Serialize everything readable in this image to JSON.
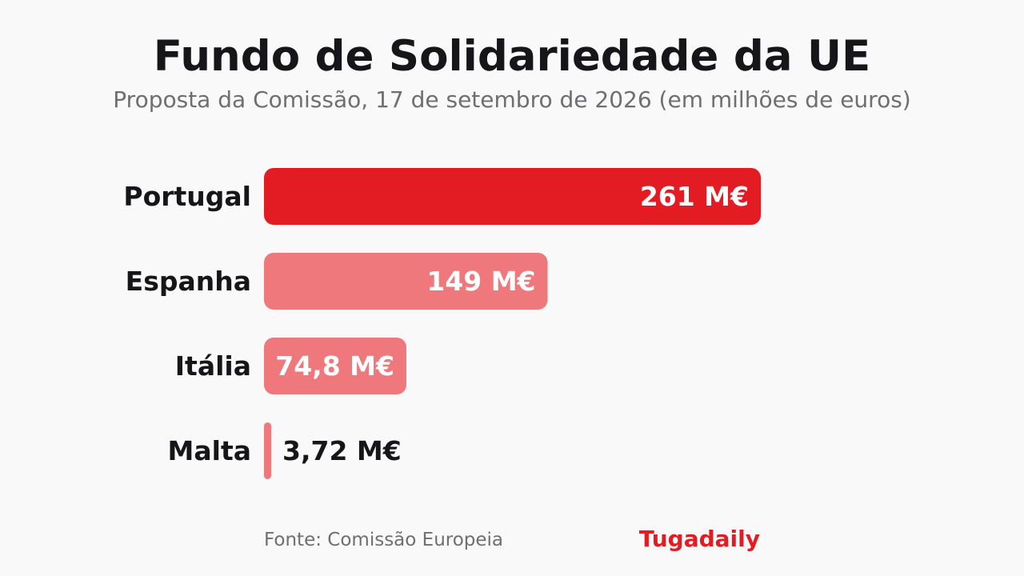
{
  "header": {
    "title": "Fundo de Solidariedade da UE",
    "subtitle": "Proposta da Comissão, 17 de setembro de 2026 (em milhões de euros)"
  },
  "chart_data": {
    "type": "bar",
    "orientation": "horizontal",
    "categories": [
      "Portugal",
      "Espanha",
      "Itália",
      "Malta"
    ],
    "values": [
      261,
      149,
      74.8,
      3.72
    ],
    "value_labels": [
      "261 M€",
      "149 M€",
      "74,8 M€",
      "3,72 M€"
    ],
    "unit": "M€",
    "highlight_index": 0,
    "grid": false,
    "legend": "none"
  },
  "colors": {
    "highlight": "#e31c23",
    "bar": "#ef787c",
    "title": "#16161a",
    "muted": "#6e6e73",
    "label_inside": "#ffffff",
    "label_outside": "#16161a"
  },
  "footer": {
    "source": "Fonte: Comissão Europeia",
    "brand": "Tugadaily"
  }
}
